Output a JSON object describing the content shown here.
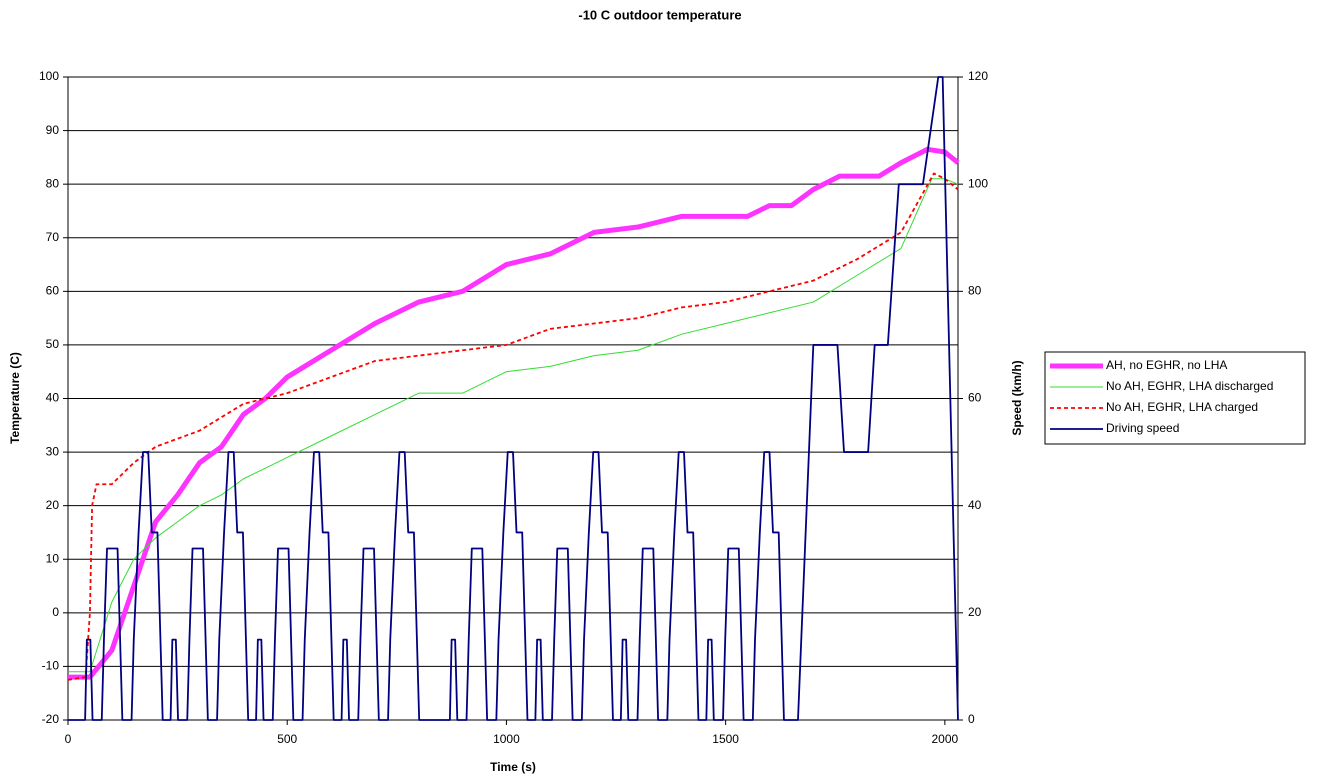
{
  "chart_data": {
    "type": "line",
    "title": "-10 C outdoor temperature",
    "x_label": "Time (s)",
    "y_label": "Temperature (C)",
    "y2_label": "Speed (km/h)",
    "xlim": [
      0,
      2030
    ],
    "xticks": [
      0,
      500,
      1000,
      1500,
      2000
    ],
    "ylim": [
      -20,
      100
    ],
    "yticks": [
      -20,
      -10,
      0,
      10,
      20,
      30,
      40,
      50,
      60,
      70,
      80,
      90,
      100
    ],
    "y2lim": [
      0,
      120
    ],
    "y2ticks": [
      0,
      20,
      40,
      60,
      80,
      100,
      120
    ],
    "grid": true,
    "legend": "right",
    "series": [
      {
        "name": "AH, no EGHR, no LHA",
        "color": "#ff33ff",
        "style": "thick",
        "x": [
          0,
          50,
          100,
          150,
          200,
          250,
          300,
          350,
          400,
          450,
          500,
          600,
          700,
          800,
          900,
          1000,
          1100,
          1200,
          1300,
          1400,
          1500,
          1550,
          1600,
          1650,
          1700,
          1760,
          1850,
          1900,
          1960,
          2000,
          2030
        ],
        "values": [
          -12,
          -12,
          -7,
          5,
          17,
          22,
          28,
          31,
          37,
          40,
          44,
          49,
          54,
          58,
          60,
          65,
          67,
          71,
          72,
          74,
          74,
          74,
          76,
          76,
          79,
          81.5,
          81.5,
          84,
          86.5,
          86,
          84
        ]
      },
      {
        "name": "No AH, EGHR, LHA discharged",
        "color": "#33dd33",
        "style": "thin",
        "x": [
          0,
          50,
          100,
          150,
          200,
          250,
          300,
          350,
          400,
          450,
          500,
          600,
          700,
          800,
          900,
          950,
          1000,
          1100,
          1200,
          1300,
          1400,
          1500,
          1600,
          1700,
          1800,
          1900,
          1970,
          2000,
          2030
        ],
        "values": [
          -11,
          -11,
          2,
          10,
          14,
          17,
          20,
          22,
          25,
          27,
          29,
          33,
          37,
          41,
          41,
          43,
          45,
          46,
          48,
          49,
          52,
          54,
          56,
          58,
          63,
          68,
          81,
          81,
          80
        ]
      },
      {
        "name": "No AH, EGHR, LHA charged",
        "color": "#ff0000",
        "style": "dashed",
        "x": [
          0,
          40,
          50,
          55,
          65,
          100,
          150,
          200,
          300,
          400,
          500,
          600,
          700,
          800,
          900,
          1000,
          1100,
          1200,
          1300,
          1400,
          1500,
          1600,
          1700,
          1800,
          1900,
          1975,
          2000,
          2030
        ],
        "values": [
          -12.5,
          -12,
          0,
          20,
          24,
          24,
          28,
          31,
          34,
          39,
          41,
          44,
          47,
          48,
          49,
          50,
          53,
          54,
          55,
          57,
          58,
          60,
          62,
          66,
          71,
          82,
          81,
          79
        ]
      },
      {
        "name": "Driving speed",
        "color": "#000080",
        "style": "solid",
        "axis": "y2",
        "x": [
          0,
          39,
          43,
          51,
          56,
          77,
          82,
          89,
          113,
          124,
          145,
          150,
          161,
          171,
          183,
          191,
          204,
          216,
          234,
          238,
          246,
          251,
          272,
          277,
          284,
          308,
          319,
          340,
          345,
          356,
          366,
          378,
          386,
          399,
          411,
          429,
          433,
          441,
          446,
          467,
          472,
          479,
          503,
          514,
          535,
          540,
          551,
          561,
          573,
          581,
          594,
          606,
          624,
          628,
          636,
          641,
          662,
          667,
          674,
          698,
          709,
          730,
          735,
          746,
          756,
          768,
          776,
          789,
          801,
          871,
          875,
          883,
          888,
          909,
          914,
          921,
          945,
          956,
          977,
          982,
          993,
          1003,
          1015,
          1023,
          1036,
          1048,
          1066,
          1070,
          1078,
          1083,
          1104,
          1109,
          1116,
          1140,
          1151,
          1172,
          1177,
          1188,
          1198,
          1210,
          1218,
          1231,
          1243,
          1261,
          1265,
          1273,
          1278,
          1299,
          1304,
          1311,
          1335,
          1346,
          1367,
          1372,
          1383,
          1393,
          1405,
          1413,
          1426,
          1438,
          1456,
          1460,
          1468,
          1473,
          1494,
          1499,
          1506,
          1530,
          1541,
          1562,
          1567,
          1578,
          1588,
          1600,
          1608,
          1621,
          1633,
          1665,
          1690,
          1700,
          1755,
          1770,
          1825,
          1840,
          1870,
          1895,
          1950,
          1985,
          1995,
          2030
        ],
        "values": [
          0,
          0,
          15,
          15,
          0,
          0,
          15,
          32,
          32,
          0,
          0,
          15,
          35,
          50,
          50,
          35,
          35,
          0,
          0,
          15,
          15,
          0,
          0,
          15,
          32,
          32,
          0,
          0,
          15,
          35,
          50,
          50,
          35,
          35,
          0,
          0,
          15,
          15,
          0,
          0,
          15,
          32,
          32,
          0,
          0,
          15,
          35,
          50,
          50,
          35,
          35,
          0,
          0,
          15,
          15,
          0,
          0,
          15,
          32,
          32,
          0,
          0,
          15,
          35,
          50,
          50,
          35,
          35,
          0,
          0,
          15,
          15,
          0,
          0,
          15,
          32,
          32,
          0,
          0,
          15,
          35,
          50,
          50,
          35,
          35,
          0,
          0,
          15,
          15,
          0,
          0,
          15,
          32,
          32,
          0,
          0,
          15,
          35,
          50,
          50,
          35,
          35,
          0,
          0,
          15,
          15,
          0,
          0,
          15,
          32,
          32,
          0,
          0,
          15,
          35,
          50,
          50,
          35,
          35,
          0,
          0,
          15,
          15,
          0,
          0,
          15,
          32,
          32,
          0,
          0,
          15,
          35,
          50,
          50,
          35,
          35,
          0,
          0,
          50,
          70,
          70,
          50,
          50,
          70,
          70,
          100,
          100,
          120,
          120,
          0
        ]
      }
    ]
  }
}
